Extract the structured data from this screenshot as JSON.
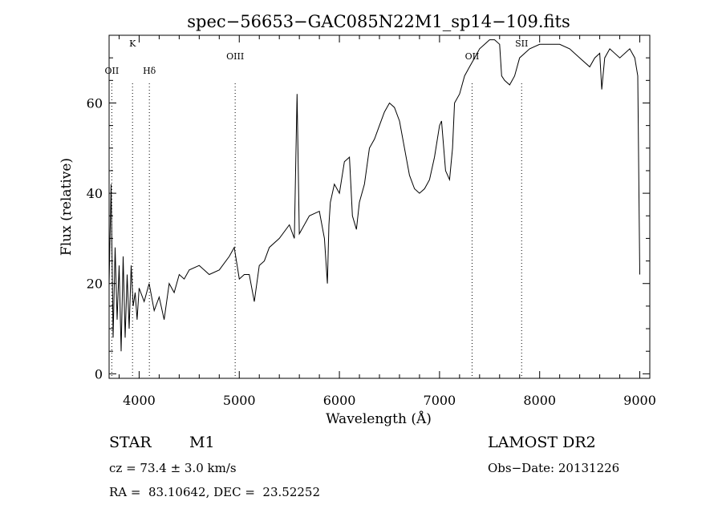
{
  "chart_data": {
    "type": "line",
    "title": "spec−56653−GAC085N22M1_sp14−109.fits",
    "xlabel": "Wavelength (Å)",
    "ylabel": "Flux (relative)",
    "xlim": [
      3700,
      9100
    ],
    "ylim": [
      -1,
      75
    ],
    "x_ticks": [
      "4000",
      "5000",
      "6000",
      "7000",
      "8000",
      "9000"
    ],
    "x_tick_values": [
      4000,
      5000,
      6000,
      7000,
      8000,
      9000
    ],
    "y_ticks": [
      "0",
      "20",
      "40",
      "60"
    ],
    "y_tick_values": [
      0,
      20,
      40,
      60
    ],
    "grid": false,
    "line_markers": [
      {
        "label": "OII",
        "x": 3727
      },
      {
        "label": "K",
        "x": 3934
      },
      {
        "label": "Hδ",
        "x": 4102
      },
      {
        "label": "OIII",
        "x": 4959
      },
      {
        "label": "OII",
        "x": 7325
      },
      {
        "label": "SII",
        "x": 7820
      }
    ],
    "series": [
      {
        "x": [
          3700,
          3720,
          3740,
          3760,
          3780,
          3800,
          3820,
          3840,
          3860,
          3880,
          3900,
          3920,
          3940,
          3960,
          3980,
          4000,
          4050,
          4100,
          4150,
          4200,
          4250,
          4300,
          4350,
          4400,
          4450,
          4500,
          4600,
          4700,
          4800,
          4900,
          4950,
          5000,
          5050,
          5100,
          5150,
          5200,
          5250,
          5300,
          5400,
          5500,
          5550,
          5577,
          5600,
          5700,
          5800,
          5850,
          5880,
          5895,
          5910,
          5950,
          6000,
          6050,
          6100,
          6130,
          6170,
          6200,
          6250,
          6300,
          6350,
          6400,
          6450,
          6500,
          6550,
          6600,
          6650,
          6700,
          6750,
          6800,
          6850,
          6900,
          6950,
          7000,
          7020,
          7060,
          7100,
          7130,
          7150,
          7200,
          7250,
          7300,
          7350,
          7400,
          7450,
          7500,
          7550,
          7600,
          7620,
          7650,
          7700,
          7750,
          7800,
          7850,
          7900,
          8000,
          8100,
          8200,
          8300,
          8400,
          8500,
          8550,
          8600,
          8620,
          8650,
          8700,
          8800,
          8900,
          8950,
          8980,
          9000
        ],
        "y": [
          20,
          42,
          8,
          28,
          12,
          24,
          5,
          26,
          8,
          22,
          10,
          24,
          15,
          18,
          12,
          19,
          16,
          20,
          14,
          17,
          12,
          20,
          18,
          22,
          21,
          23,
          24,
          22,
          23,
          26,
          28,
          21,
          22,
          22,
          16,
          24,
          25,
          28,
          30,
          33,
          30,
          62,
          31,
          35,
          36,
          30,
          20,
          33,
          38,
          42,
          40,
          47,
          48,
          35,
          32,
          38,
          42,
          50,
          52,
          55,
          58,
          60,
          59,
          56,
          50,
          44,
          41,
          40,
          41,
          43,
          48,
          55,
          56,
          45,
          43,
          50,
          60,
          62,
          66,
          68,
          70,
          72,
          73,
          74,
          74,
          73,
          66,
          65,
          64,
          66,
          70,
          71,
          72,
          73,
          73,
          73,
          72,
          70,
          68,
          70,
          71,
          63,
          70,
          72,
          70,
          72,
          70,
          66,
          22
        ]
      }
    ]
  },
  "info": {
    "object_class": "STAR",
    "subclass": "M1",
    "survey": "LAMOST DR2",
    "cz": "cz = 73.4 ± 3.0 km/s",
    "obs_date": "Obs−Date: 20131226",
    "coords": "RA =  83.10642, DEC =  23.52252"
  }
}
